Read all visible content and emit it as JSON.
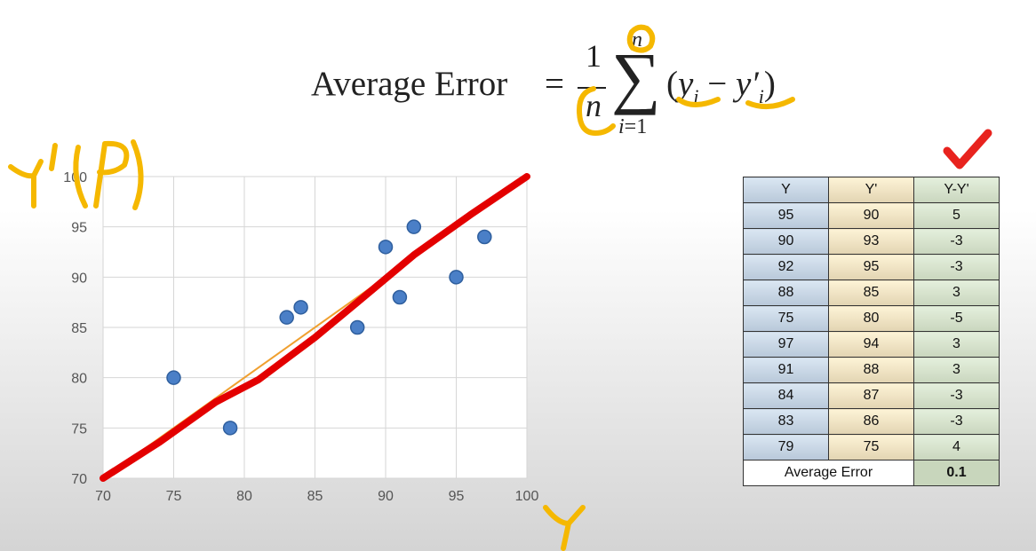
{
  "formula": {
    "lhs": "Average Error",
    "eq": "=",
    "numerator": "1",
    "denominator": "n",
    "sum_top": "n",
    "sum_bottom_var": "i",
    "sum_bottom_rest": "=1",
    "body_open": "(",
    "y": "y",
    "y_sub": "i",
    "minus": " − ",
    "yp": "y′",
    "yp_sub": "i",
    "body_close": ")"
  },
  "chart_data": {
    "type": "scatter",
    "xlim": [
      70,
      100
    ],
    "ylim": [
      70,
      100
    ],
    "x_ticks": [
      "70",
      "75",
      "80",
      "85",
      "90",
      "95",
      "100"
    ],
    "y_ticks": [
      "70",
      "75",
      "80",
      "85",
      "90",
      "95",
      "100"
    ],
    "grid": true,
    "point_color": "#4a7fc7",
    "trend_color": "#e30000",
    "points": [
      {
        "x": 75,
        "y": 80
      },
      {
        "x": 79,
        "y": 75
      },
      {
        "x": 83,
        "y": 86
      },
      {
        "x": 84,
        "y": 87
      },
      {
        "x": 88,
        "y": 85
      },
      {
        "x": 90,
        "y": 93
      },
      {
        "x": 91,
        "y": 88
      },
      {
        "x": 92,
        "y": 95
      },
      {
        "x": 95,
        "y": 90
      },
      {
        "x": 97,
        "y": 94
      }
    ],
    "trend_line": [
      {
        "x": 70,
        "y": 70
      },
      {
        "x": 100,
        "y": 100
      }
    ]
  },
  "table": {
    "headers": [
      "Y",
      "Y'",
      "Y-Y'"
    ],
    "rows": [
      [
        "95",
        "90",
        "5"
      ],
      [
        "90",
        "93",
        "-3"
      ],
      [
        "92",
        "95",
        "-3"
      ],
      [
        "88",
        "85",
        "3"
      ],
      [
        "75",
        "80",
        "-5"
      ],
      [
        "97",
        "94",
        "3"
      ],
      [
        "91",
        "88",
        "3"
      ],
      [
        "84",
        "87",
        "-3"
      ],
      [
        "83",
        "86",
        "-3"
      ],
      [
        "79",
        "75",
        "4"
      ]
    ],
    "footer_label": "Average Error",
    "footer_value": "0.1"
  },
  "colors": {
    "highlight": "#f5b800",
    "check": "#e8231e"
  }
}
